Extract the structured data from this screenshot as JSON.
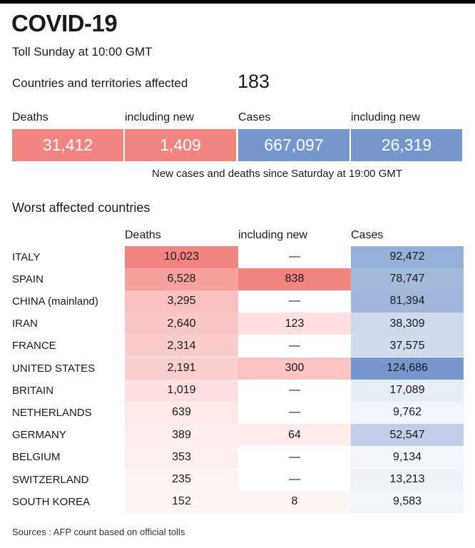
{
  "header": {
    "title": "COVID-19",
    "subtitle": "Toll Sunday at 10:00 GMT",
    "affected_label": "Countries and territories affected",
    "affected_value": "183"
  },
  "summary": {
    "labels": [
      "Deaths",
      "including new",
      "Cases",
      "including new"
    ],
    "values": [
      "31,412",
      "1,409",
      "667,097",
      "26,319"
    ],
    "colors": [
      "#f28580",
      "#f28580",
      "#7597cb",
      "#7597cb"
    ],
    "note": "New cases and deaths since Saturday at 19:00 GMT"
  },
  "footer": {
    "source": "Sources : AFP count based on official tolls"
  },
  "chart_data": {
    "type": "table",
    "title": "Worst affected countries",
    "columns": [
      "Deaths",
      "including new",
      "Cases"
    ],
    "rows": [
      {
        "country": "ITALY",
        "deaths": "10,023",
        "new_deaths": "—",
        "cases": "92,472"
      },
      {
        "country": "SPAIN",
        "deaths": "6,528",
        "new_deaths": "838",
        "cases": "78,747"
      },
      {
        "country": "CHINA (mainland)",
        "deaths": "3,295",
        "new_deaths": "—",
        "cases": "81,394"
      },
      {
        "country": "IRAN",
        "deaths": "2,640",
        "new_deaths": "123",
        "cases": "38,309"
      },
      {
        "country": "FRANCE",
        "deaths": "2,314",
        "new_deaths": "—",
        "cases": "37,575"
      },
      {
        "country": "UNITED STATES",
        "deaths": "2,191",
        "new_deaths": "300",
        "cases": "124,686"
      },
      {
        "country": "BRITAIN",
        "deaths": "1,019",
        "new_deaths": "—",
        "cases": "17,089"
      },
      {
        "country": "NETHERLANDS",
        "deaths": "639",
        "new_deaths": "—",
        "cases": "9,762"
      },
      {
        "country": "GERMANY",
        "deaths": "389",
        "new_deaths": "64",
        "cases": "52,547"
      },
      {
        "country": "BELGIUM",
        "deaths": "353",
        "new_deaths": "—",
        "cases": "9,134"
      },
      {
        "country": "SWITZERLAND",
        "deaths": "235",
        "new_deaths": "—",
        "cases": "13,213"
      },
      {
        "country": "SOUTH KOREA",
        "deaths": "152",
        "new_deaths": "8",
        "cases": "9,583"
      }
    ],
    "death_color": "#f28580",
    "case_color": "#7597cb"
  }
}
